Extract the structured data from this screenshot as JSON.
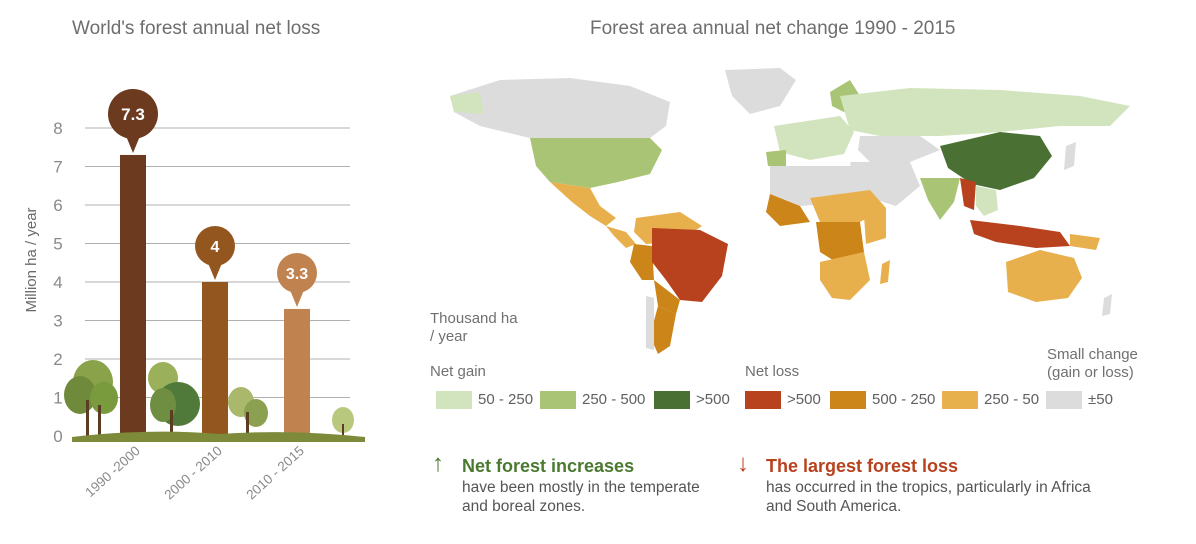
{
  "bar_title": "World's forest annual net loss",
  "map_title": "Forest area annual net change 1990 - 2015",
  "chart_data": [
    {
      "type": "bar",
      "title": "World's forest annual net loss",
      "ylabel": "Million ha / year",
      "categories": [
        "1990 -2000",
        "2000 - 2010",
        "2010 - 2015"
      ],
      "values": [
        7.3,
        4,
        3.3
      ],
      "value_labels": [
        "7.3",
        "4",
        "3.3"
      ],
      "yticks": [
        "0",
        "1",
        "2",
        "3",
        "4",
        "5",
        "6",
        "7",
        "8"
      ],
      "ylim": [
        0,
        8
      ],
      "grid": true,
      "colors": [
        "#6b3a1f",
        "#94561f",
        "#c08350"
      ]
    }
  ],
  "legend": {
    "unit": "Thousand ha / year",
    "net_gain": "Net gain",
    "net_loss": "Net loss",
    "small_change": "Small change (gain or loss)",
    "items": [
      {
        "label": "50 - 250",
        "color": "#d2e4bd"
      },
      {
        "label": "250 - 500",
        "color": "#a9c475"
      },
      {
        "label": ">500",
        "color": "#4a7033"
      },
      {
        "label": ">500",
        "color": "#b8411e"
      },
      {
        "label": "500 - 250",
        "color": "#cc8518"
      },
      {
        "label": "250 - 50",
        "color": "#e8b04c"
      },
      {
        "label": "±50",
        "color": "#dcdcdc"
      }
    ]
  },
  "notes": {
    "increase": {
      "arrow": "↑",
      "title": "Net forest increases",
      "text": "have been mostly in the temperate and boreal zones.",
      "color": "#4a7a2f"
    },
    "loss": {
      "arrow": "↓",
      "title": "The largest forest loss",
      "text": "has occurred in the tropics, particularly in Africa and South America.",
      "color": "#b8411e"
    }
  }
}
